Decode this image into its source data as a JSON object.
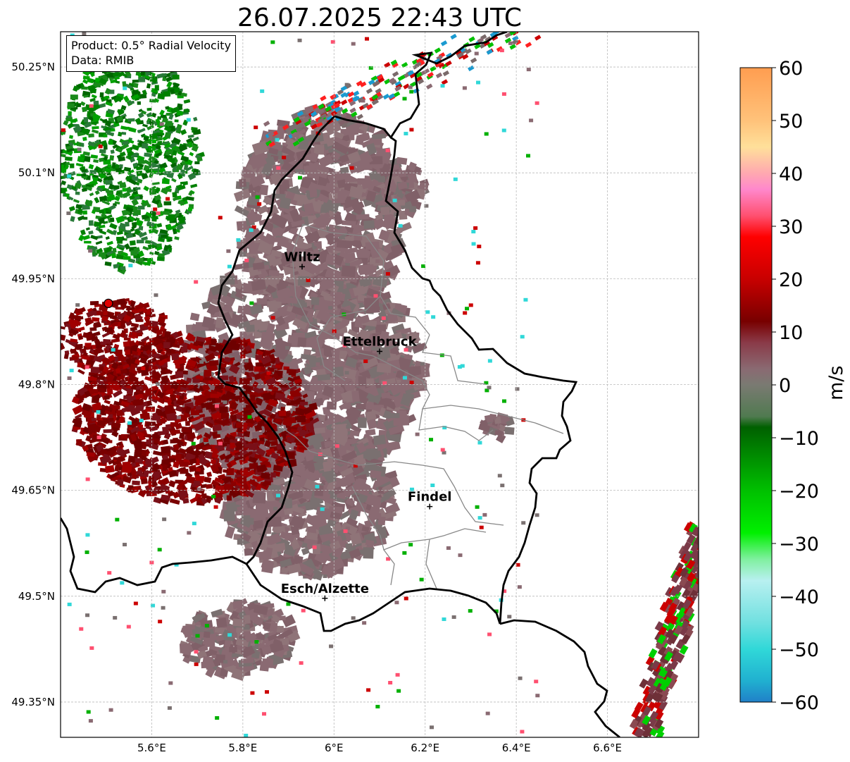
{
  "title": "26.07.2025 22:43 UTC",
  "info_box": {
    "product": "Product: 0.5° Radial Velocity",
    "data": "Data: RMIB"
  },
  "latitude_ticks": [
    {
      "value": 50.25,
      "label": "50.25°N"
    },
    {
      "value": 50.1,
      "label": "50.1°N"
    },
    {
      "value": 49.95,
      "label": "49.95°N"
    },
    {
      "value": 49.8,
      "label": "49.8°N"
    },
    {
      "value": 49.65,
      "label": "49.65°N"
    },
    {
      "value": 49.5,
      "label": "49.5°N"
    },
    {
      "value": 49.35,
      "label": "49.35°N"
    }
  ],
  "longitude_ticks": [
    {
      "value": 5.6,
      "label": "5.6°E"
    },
    {
      "value": 5.8,
      "label": "5.8°E"
    },
    {
      "value": 6.0,
      "label": "6°E"
    },
    {
      "value": 6.2,
      "label": "6.2°E"
    },
    {
      "value": 6.4,
      "label": "6.4°E"
    },
    {
      "value": 6.6,
      "label": "6.6°E"
    }
  ],
  "map_extent": {
    "lon": [
      5.4,
      6.8
    ],
    "lat": [
      49.3,
      50.3
    ]
  },
  "cities": [
    {
      "name": "Wiltz",
      "lon": 5.93,
      "lat": 49.967
    },
    {
      "name": "Ettelbruck",
      "lon": 6.1,
      "lat": 49.847
    },
    {
      "name": "Findel",
      "lon": 6.21,
      "lat": 49.627
    },
    {
      "name": "Esch/Alzette",
      "lon": 5.98,
      "lat": 49.497
    }
  ],
  "radar_site": {
    "lon": 5.505,
    "lat": 49.915,
    "color": "#e00000"
  },
  "colorbar": {
    "label": "m/s",
    "min": -60,
    "max": 60,
    "ticks": [
      60,
      50,
      40,
      30,
      20,
      10,
      0,
      -10,
      -20,
      -30,
      -40,
      -50,
      -60
    ],
    "tick_labels": [
      "60",
      "50",
      "40",
      "30",
      "20",
      "10",
      "0",
      "−10",
      "−20",
      "−30",
      "−40",
      "−50",
      "−60"
    ],
    "stops": [
      {
        "v": 60,
        "color": "#ff9d50"
      },
      {
        "v": 50,
        "color": "#ffc27a"
      },
      {
        "v": 45,
        "color": "#ffe09a"
      },
      {
        "v": 40,
        "color": "#ffa8b0"
      },
      {
        "v": 37,
        "color": "#ff88cc"
      },
      {
        "v": 32,
        "color": "#ff5070"
      },
      {
        "v": 28,
        "color": "#ff0000"
      },
      {
        "v": 20,
        "color": "#c80000"
      },
      {
        "v": 12,
        "color": "#780000"
      },
      {
        "v": 8,
        "color": "#8a3a48"
      },
      {
        "v": 3,
        "color": "#8a6a72"
      },
      {
        "v": 0,
        "color": "#7a7a72"
      },
      {
        "v": -6,
        "color": "#507a50"
      },
      {
        "v": -8,
        "color": "#006000"
      },
      {
        "v": -20,
        "color": "#00c000"
      },
      {
        "v": -28,
        "color": "#00f000"
      },
      {
        "v": -33,
        "color": "#80f0a0"
      },
      {
        "v": -37,
        "color": "#b8f0f0"
      },
      {
        "v": -45,
        "color": "#70e0e0"
      },
      {
        "v": -50,
        "color": "#30d8d8"
      },
      {
        "v": -56,
        "color": "#20b0d0"
      },
      {
        "v": -60,
        "color": "#2080c8"
      }
    ]
  },
  "colors": {
    "border": "#000000",
    "canton_border": "#888888",
    "grid": "#bbbbbb",
    "velocity_neutral": "#8a6a72",
    "velocity_outbound_strong": "#7a0000",
    "velocity_inbound": "#008000"
  }
}
